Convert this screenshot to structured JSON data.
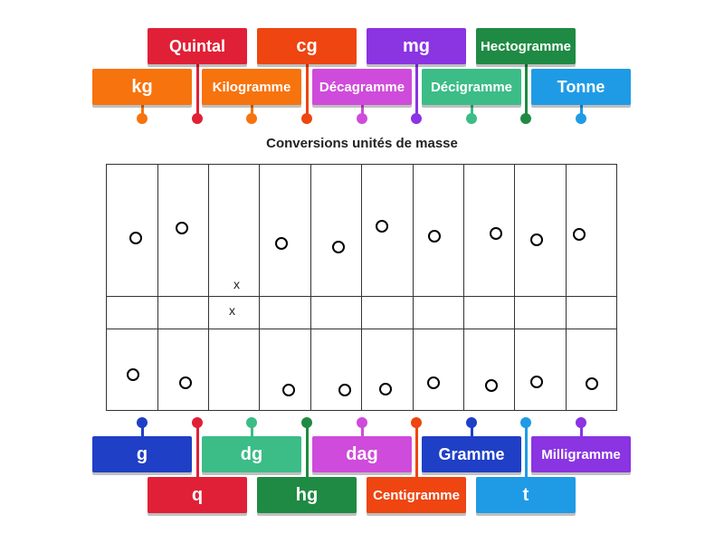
{
  "title": "Conversions unités de masse",
  "labels_top": [
    {
      "text": "kg",
      "color": "#f7730e",
      "row": 1,
      "col": 0
    },
    {
      "text": "Quintal",
      "color": "#e02036",
      "row": 0,
      "col": 1
    },
    {
      "text": "Kilogramme",
      "color": "#f7730e",
      "row": 1,
      "col": 2
    },
    {
      "text": "cg",
      "color": "#ee4511",
      "row": 0,
      "col": 3
    },
    {
      "text": "Décagramme",
      "color": "#cf4bdb",
      "row": 1,
      "col": 4
    },
    {
      "text": "mg",
      "color": "#8a34e2",
      "row": 0,
      "col": 5
    },
    {
      "text": "Décigramme",
      "color": "#3cbc86",
      "row": 1,
      "col": 6
    },
    {
      "text": "Hectogramme",
      "color": "#1f8a43",
      "row": 0,
      "col": 7
    },
    {
      "text": "Tonne",
      "color": "#1f9be6",
      "row": 1,
      "col": 8
    }
  ],
  "labels_bottom": [
    {
      "text": "g",
      "color": "#1f3fc6",
      "row": 0,
      "col": 0
    },
    {
      "text": "q",
      "color": "#e02036",
      "row": 1,
      "col": 1
    },
    {
      "text": "dg",
      "color": "#3cbc86",
      "row": 0,
      "col": 2
    },
    {
      "text": "hg",
      "color": "#1f8a43",
      "row": 1,
      "col": 3
    },
    {
      "text": "dag",
      "color": "#cf4bdb",
      "row": 0,
      "col": 4
    },
    {
      "text": "Centigramme",
      "color": "#ee4511",
      "row": 1,
      "col": 5
    },
    {
      "text": "Gramme",
      "color": "#1f3fc6",
      "row": 0,
      "col": 6
    },
    {
      "text": "t",
      "color": "#1f9be6",
      "row": 1,
      "col": 7
    },
    {
      "text": "Milligramme",
      "color": "#8a34e2",
      "row": 0,
      "col": 8
    }
  ],
  "table_marks": [
    "x",
    "x"
  ]
}
